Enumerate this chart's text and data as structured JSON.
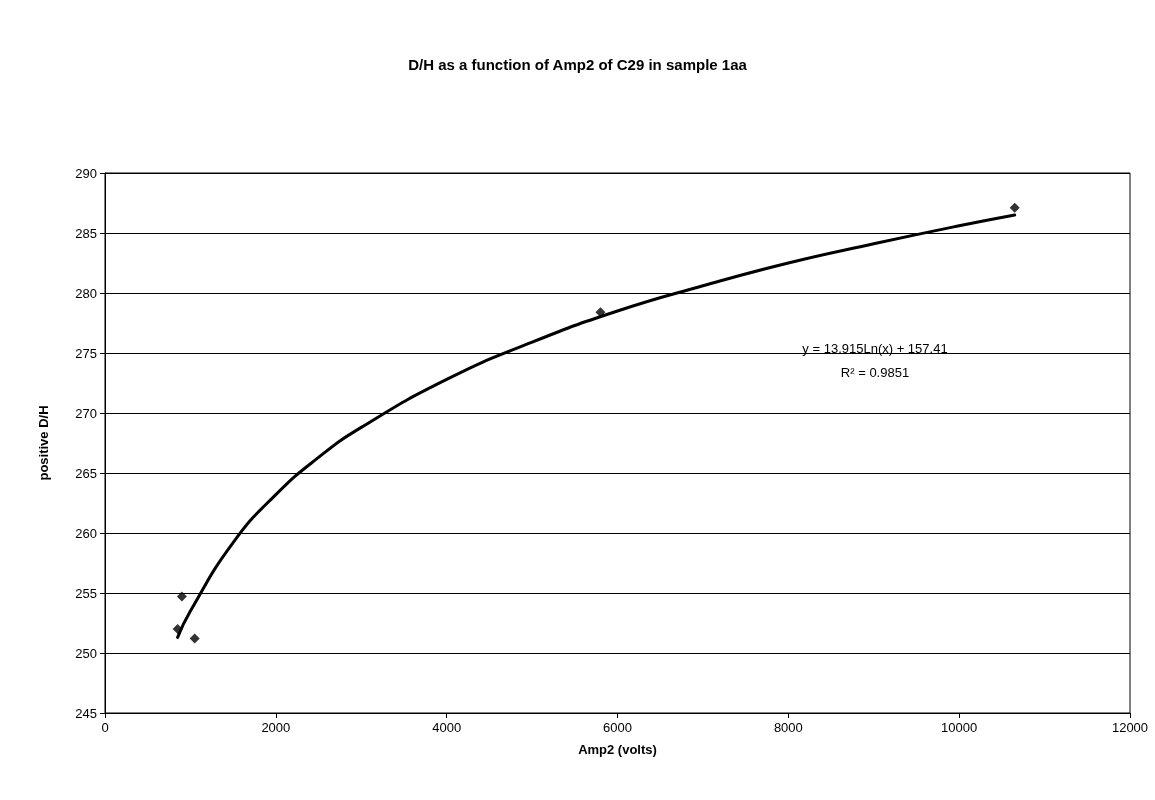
{
  "chart_data": {
    "type": "scatter",
    "title": "D/H as a function of Amp2 of C29 in sample 1aa",
    "xlabel": "Amp2 (volts)",
    "ylabel": "positive D/H",
    "xlim": [
      0,
      12000
    ],
    "xticks": [
      0,
      2000,
      4000,
      6000,
      8000,
      10000,
      12000
    ],
    "ylim": [
      245,
      290
    ],
    "yticks": [
      245,
      250,
      255,
      260,
      265,
      270,
      275,
      280,
      285,
      290
    ],
    "grid": "y",
    "marker": "diamond",
    "series": [
      {
        "color": "#000000",
        "x": [
          850,
          900,
          1050,
          5800,
          10650
        ],
        "values": [
          252,
          254.7,
          251.2,
          278.4,
          287.1
        ]
      },
      {
        "type": "line",
        "color": "#000000",
        "marker": "none",
        "line_style": "solid",
        "x": [
          850,
          1000,
          1500,
          2000,
          2500,
          3000,
          4000,
          5000,
          6000,
          7000,
          8000,
          9000,
          10000,
          10650
        ],
        "values": [
          251.3,
          253.5,
          259.2,
          263.2,
          266.3,
          268.8,
          272.8,
          275.9,
          278.5,
          280.6,
          282.5,
          284.1,
          285.6,
          286.5
        ]
      }
    ],
    "annotations": [
      "y = 13.915Ln(x) + 157.41",
      "R² = 0.9851"
    ]
  }
}
